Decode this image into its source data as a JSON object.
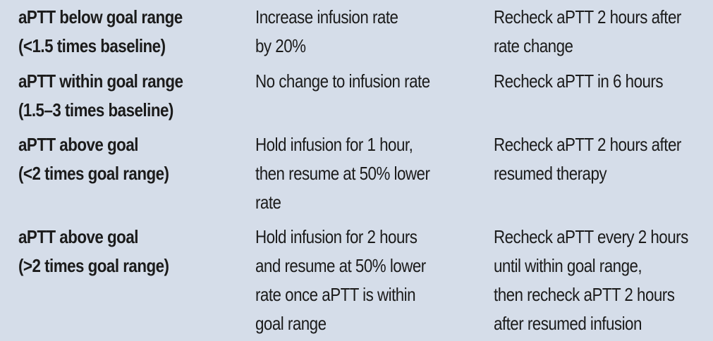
{
  "rows": [
    {
      "condition": [
        "aPTT below goal range",
        "(<1.5 times baseline)"
      ],
      "action": [
        "Increase infusion rate",
        "by 20%"
      ],
      "followup": [
        "Recheck aPTT 2 hours after",
        "rate change"
      ]
    },
    {
      "condition": [
        "aPTT within goal range",
        "(1.5–3 times baseline)"
      ],
      "action": [
        "No change to infusion rate"
      ],
      "followup": [
        "Recheck aPTT in 6 hours"
      ]
    },
    {
      "condition": [
        "aPTT above goal",
        "(<2 times goal range)"
      ],
      "action": [
        "Hold infusion for 1 hour,",
        "then resume at 50% lower",
        "rate"
      ],
      "followup": [
        "Recheck aPTT 2 hours after",
        "resumed therapy"
      ]
    },
    {
      "condition": [
        "aPTT above goal",
        "(>2 times goal range)"
      ],
      "action": [
        "Hold infusion for 2 hours",
        "and resume at 50% lower",
        "rate once aPTT is within",
        "goal range"
      ],
      "followup": [
        "Recheck aPTT every 2 hours",
        "until within goal range,",
        "then recheck aPTT 2 hours",
        "after resumed infusion"
      ]
    }
  ]
}
